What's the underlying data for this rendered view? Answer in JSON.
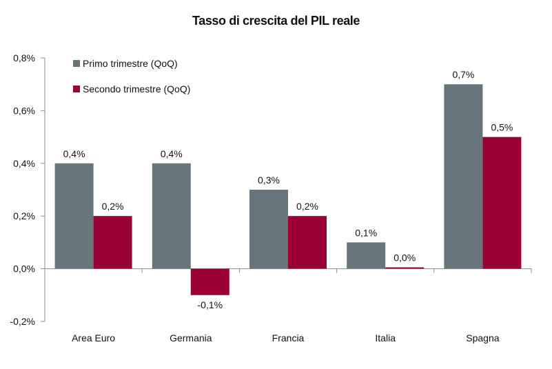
{
  "chart_data": {
    "type": "bar",
    "title": "Tasso di crescita del PIL reale",
    "categories": [
      "Area Euro",
      "Germania",
      "Francia",
      "Italia",
      "Spagna"
    ],
    "series": [
      {
        "name": "Primo trimestre (QoQ)",
        "color": "#68767c",
        "values": [
          0.4,
          0.4,
          0.3,
          0.1,
          0.7
        ],
        "labels": [
          "0,4%",
          "0,4%",
          "0,3%",
          "0,1%",
          "0,7%"
        ]
      },
      {
        "name": "Secondo trimestre (QoQ)",
        "color": "#9a0036",
        "values": [
          0.2,
          -0.1,
          0.2,
          0.0,
          0.5
        ],
        "labels": [
          "0,2%",
          "-0,1%",
          "0,2%",
          "0,0%",
          "0,5%"
        ]
      }
    ],
    "yticks": [
      -0.2,
      0.0,
      0.2,
      0.4,
      0.6,
      0.8
    ],
    "ytick_labels": [
      "-0,2%",
      "0,0%",
      "0,2%",
      "0,4%",
      "0,6%",
      "0,8%"
    ],
    "ylim": [
      -0.2,
      0.8
    ],
    "grid": false,
    "legend_position": "top-left"
  }
}
